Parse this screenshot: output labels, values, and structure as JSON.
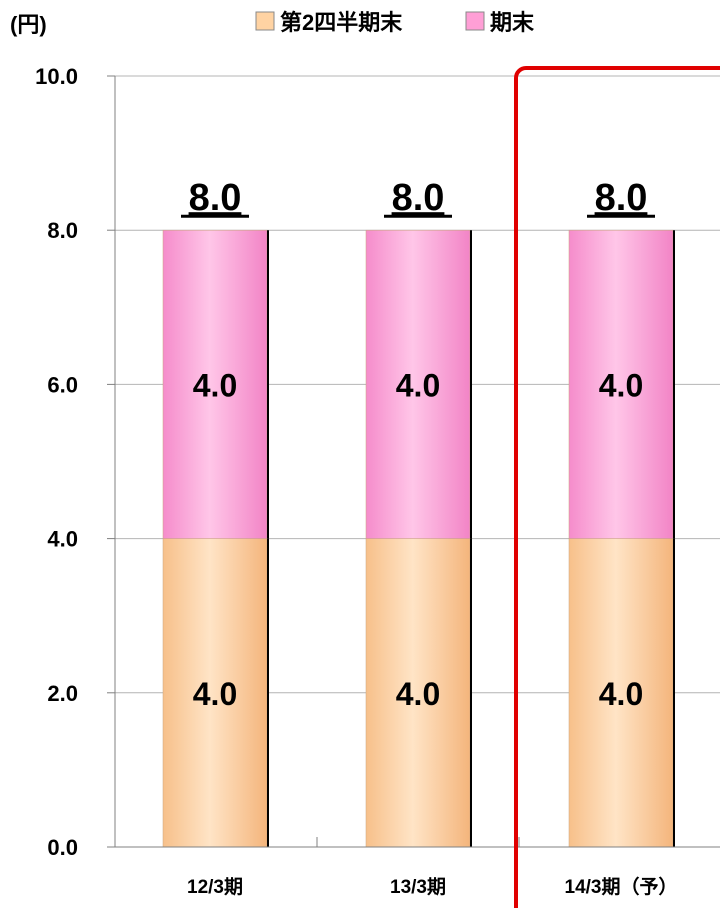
{
  "chart_data": {
    "type": "bar",
    "stacked": true,
    "unit_label": "(円)",
    "categories": [
      "12/3期",
      "13/3期",
      "14/3期（予）"
    ],
    "series": [
      {
        "name": "第2四半期末",
        "values": [
          4.0,
          4.0,
          4.0
        ],
        "color": "#FFD3A3"
      },
      {
        "name": "期末",
        "values": [
          4.0,
          4.0,
          4.0
        ],
        "color": "#FF9FD6"
      }
    ],
    "segment_labels": [
      [
        "4.0",
        "4.0",
        "4.0"
      ],
      [
        "4.0",
        "4.0",
        "4.0"
      ]
    ],
    "totals": [
      "8.0",
      "8.0",
      "8.0"
    ],
    "ylim": [
      0,
      10
    ],
    "yticks": [
      "0.0",
      "2.0",
      "4.0",
      "6.0",
      "8.0",
      "10.0"
    ],
    "grid": true,
    "legend_position": "top",
    "highlight_category": "14/3期（予）",
    "highlight_color": "#E00000"
  }
}
